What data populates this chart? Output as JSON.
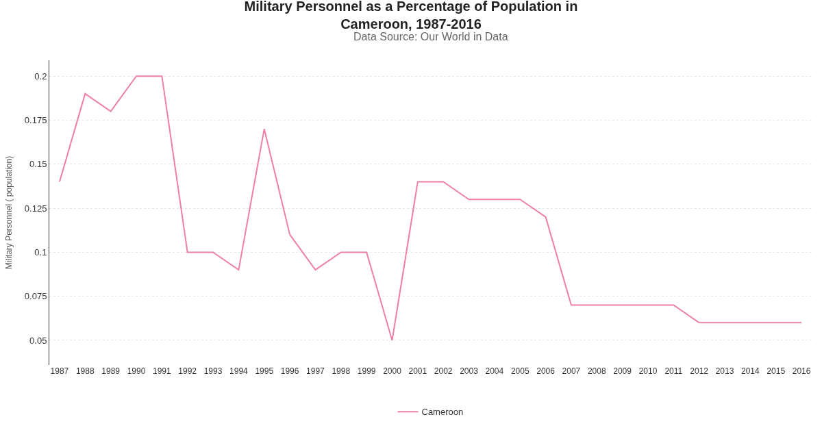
{
  "chart_data": {
    "type": "line",
    "title": "Military Personnel as a Percentage of Population in\nCameroon, 1987-2016",
    "subtitle": "Data Source: Our World in Data",
    "ylabel": "Military Personnel ( population)",
    "categories": [
      "1987",
      "1988",
      "1989",
      "1990",
      "1991",
      "1992",
      "1993",
      "1994",
      "1995",
      "1996",
      "1997",
      "1998",
      "1999",
      "2000",
      "2001",
      "2002",
      "2003",
      "2004",
      "2005",
      "2006",
      "2007",
      "2008",
      "2009",
      "2010",
      "2011",
      "2012",
      "2013",
      "2014",
      "2015",
      "2016"
    ],
    "series": [
      {
        "name": "Cameroon",
        "color": "#ee7fa6",
        "values": [
          0.14,
          0.19,
          0.18,
          0.2,
          0.2,
          0.1,
          0.1,
          0.09,
          0.17,
          0.11,
          0.09,
          0.1,
          0.1,
          0.05,
          0.14,
          0.14,
          0.13,
          0.13,
          0.13,
          0.12,
          0.07,
          0.07,
          0.07,
          0.07,
          0.07,
          0.06,
          0.06,
          0.06,
          0.06,
          0.06
        ]
      }
    ],
    "ylim": [
      0.036,
      0.209
    ],
    "yticks": [
      0.05,
      0.075,
      0.1,
      0.125,
      0.15,
      0.175,
      0.2
    ],
    "grid": "y",
    "legend": "bottom",
    "marker": "none",
    "line_style": "solid"
  }
}
